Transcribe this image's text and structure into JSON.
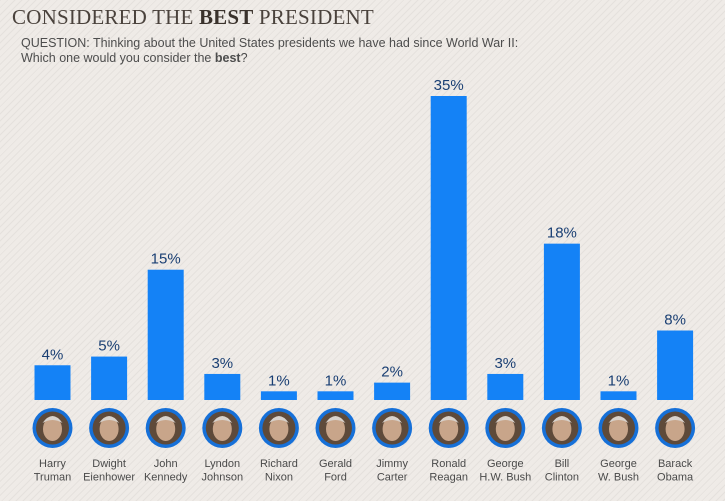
{
  "title": {
    "prefix": "CONSIDERED THE ",
    "bold": "BEST",
    "suffix": " PRESIDENT"
  },
  "question": {
    "line1": "QUESTION: Thinking about the United States presidents we have had since World War II:",
    "line2_prefix": "Which one would you consider the ",
    "line2_bold": "best",
    "line2_suffix": "?"
  },
  "colors": {
    "bar": "#1482f6",
    "avatar_ring": "#1670d8",
    "bar_label": "#1a3f73"
  },
  "chart_data": {
    "type": "bar",
    "title": "CONSIDERED THE BEST PRESIDENT",
    "xlabel": "",
    "ylabel": "",
    "ylim": [
      0,
      35
    ],
    "grid": false,
    "legend": "none",
    "categories": [
      [
        "Harry",
        "Truman"
      ],
      [
        "Dwight",
        "Eienhower"
      ],
      [
        "John",
        "Kennedy"
      ],
      [
        "Lyndon",
        "Johnson"
      ],
      [
        "Richard",
        "Nixon"
      ],
      [
        "Gerald",
        "Ford"
      ],
      [
        "Jimmy",
        "Carter"
      ],
      [
        "Ronald",
        "Reagan"
      ],
      [
        "George",
        "H.W. Bush"
      ],
      [
        "Bill",
        "Clinton"
      ],
      [
        "George",
        "W. Bush"
      ],
      [
        "Barack",
        "Obama"
      ]
    ],
    "values": [
      4,
      5,
      15,
      3,
      1,
      1,
      2,
      35,
      3,
      18,
      1,
      8
    ],
    "value_labels": [
      "4%",
      "5%",
      "15%",
      "3%",
      "1%",
      "1%",
      "2%",
      "35%",
      "3%",
      "18%",
      "1%",
      "8%"
    ]
  }
}
